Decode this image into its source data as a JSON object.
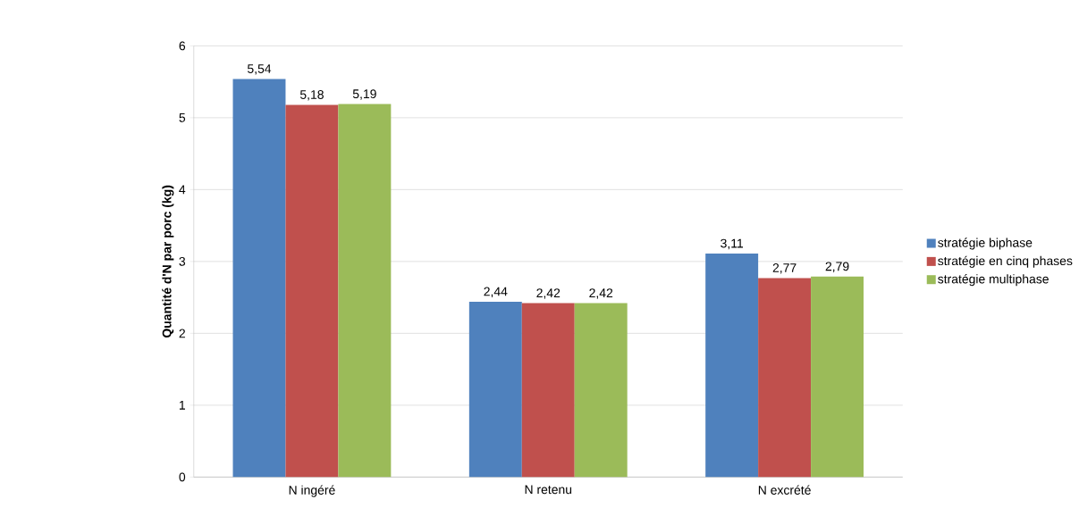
{
  "chart_data": {
    "type": "bar",
    "ylabel": "Quantité d'N par porc (kg)",
    "categories": [
      "N ingéré",
      "N retenu",
      "N excrété"
    ],
    "series": [
      {
        "name": "stratégie biphase",
        "color": "#4f81bd",
        "values": [
          5.54,
          2.44,
          3.11
        ],
        "value_labels": [
          "5,54",
          "2,44",
          "3,11"
        ]
      },
      {
        "name": "stratégie en cinq phases",
        "color": "#c0504d",
        "values": [
          5.18,
          2.42,
          2.77
        ],
        "value_labels": [
          "5,18",
          "2,42",
          "2,77"
        ]
      },
      {
        "name": "stratégie multiphase",
        "color": "#9bbb59",
        "values": [
          5.19,
          2.42,
          2.79
        ],
        "value_labels": [
          "5,19",
          "2,42",
          "2,79"
        ]
      }
    ],
    "ylim": [
      0,
      6
    ],
    "yticks": [
      0,
      1,
      2,
      3,
      4,
      5,
      6
    ],
    "grid": "y",
    "legend": "right"
  }
}
